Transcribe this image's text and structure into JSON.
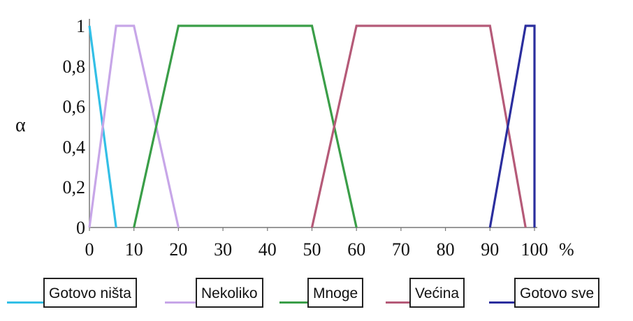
{
  "chart_data": {
    "type": "line",
    "title": "",
    "xlabel": "",
    "x_unit": "%",
    "ylabel": "α",
    "xlim": [
      0,
      100
    ],
    "ylim": [
      0,
      1
    ],
    "x_ticks": [
      "0",
      "10",
      "20",
      "30",
      "40",
      "50",
      "60",
      "70",
      "80",
      "90",
      "100"
    ],
    "x_unit_label": "%",
    "y_ticks": [
      "0",
      "0,2",
      "0,4",
      "0,6",
      "0,8",
      "1"
    ],
    "grid": false,
    "legend_position": "bottom",
    "series": [
      {
        "name": "Gotovo ništa",
        "color": "#33bfe6",
        "points": [
          [
            0,
            1
          ],
          [
            6,
            0
          ]
        ]
      },
      {
        "name": "Nekoliko",
        "color": "#c7a6e8",
        "points": [
          [
            0,
            0
          ],
          [
            6,
            1
          ],
          [
            10,
            1
          ],
          [
            20,
            0
          ]
        ]
      },
      {
        "name": "Mnoge",
        "color": "#3a9e48",
        "points": [
          [
            10,
            0
          ],
          [
            20,
            1
          ],
          [
            50,
            1
          ],
          [
            60,
            0
          ]
        ]
      },
      {
        "name": "Većina",
        "color": "#b55a78",
        "points": [
          [
            50,
            0
          ],
          [
            60,
            1
          ],
          [
            90,
            1
          ],
          [
            98,
            0
          ]
        ]
      },
      {
        "name": "Gotovo sve",
        "color": "#2b2e9e",
        "points": [
          [
            90,
            0
          ],
          [
            98,
            1
          ],
          [
            100,
            1
          ],
          [
            100,
            0
          ]
        ]
      }
    ]
  }
}
